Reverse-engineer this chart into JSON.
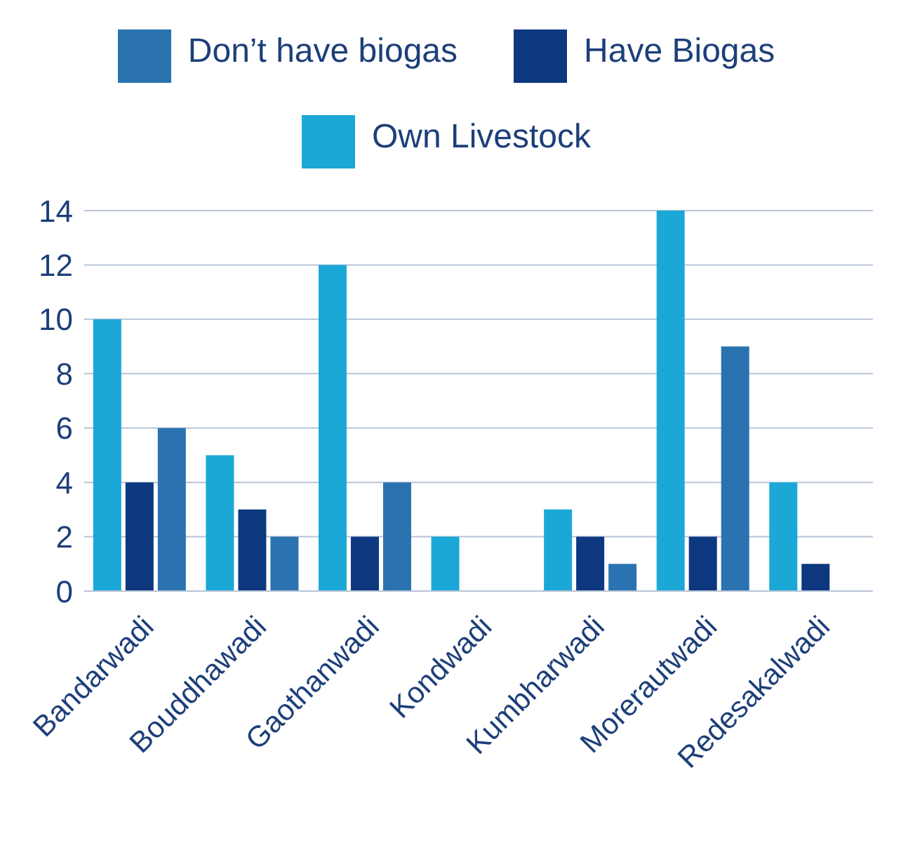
{
  "chart_data": {
    "type": "bar",
    "categories": [
      "Bandarwadi",
      "Bouddhawadi",
      "Gaothanwadi",
      "Kondwadi",
      "Kumbharwadi",
      "Morerautwadi",
      "Redesakalwadi"
    ],
    "series": [
      {
        "name": "Own Livestock",
        "color": "#1ba8d6",
        "values": [
          10,
          5,
          12,
          2,
          3,
          14,
          4
        ]
      },
      {
        "name": "Have Biogas",
        "color": "#0d3880",
        "values": [
          4,
          3,
          2,
          0,
          2,
          2,
          1
        ]
      },
      {
        "name": "Don’t have biogas",
        "color": "#2a73b0",
        "values": [
          6,
          2,
          4,
          0,
          1,
          9,
          0
        ]
      }
    ],
    "ylim": [
      0,
      14
    ],
    "yticks": [
      0,
      2,
      4,
      6,
      8,
      10,
      12,
      14
    ],
    "grid": "y",
    "legend": "top"
  }
}
